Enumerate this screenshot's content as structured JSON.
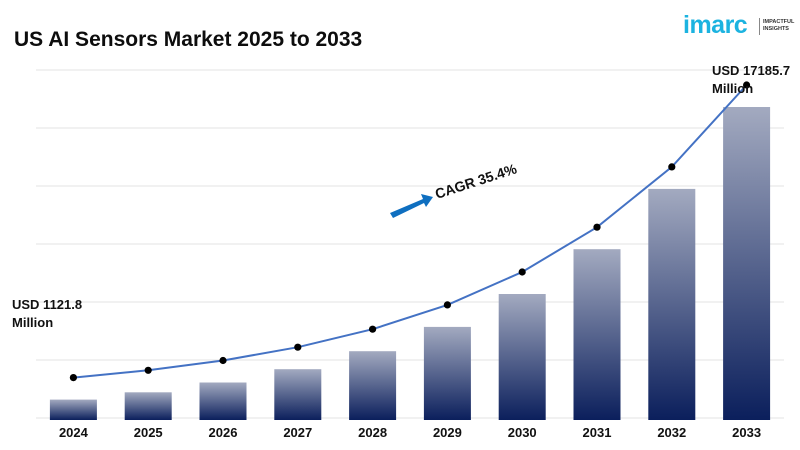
{
  "chart_data": {
    "type": "bar",
    "title": "US AI Sensors Market 2025 to 2033",
    "categories": [
      "2024",
      "2025",
      "2026",
      "2027",
      "2028",
      "2029",
      "2030",
      "2031",
      "2032",
      "2033"
    ],
    "values": [
      1121.8,
      1520,
      2060,
      2790,
      3780,
      5110,
      6920,
      9380,
      12690,
      17185.7
    ],
    "trend_line": true,
    "cagr_label": "CAGR 35.4%",
    "annotations": {
      "start": {
        "line1": "USD 1121.8",
        "line2": "Million"
      },
      "end": {
        "line1": "USD 17185.7",
        "line2": "Million"
      }
    },
    "grid": true,
    "colors": {
      "bar_top": "#a3aac0",
      "bar_bottom": "#0b1f5c",
      "line": "#4472c4",
      "arrow": "#0f6fc0",
      "grid": "#e3e3e3"
    }
  },
  "brand": {
    "logo_text": "imarc",
    "tagline_1": "IMPACTFUL",
    "tagline_2": "INSIGHTS",
    "logo_color": "#1cb3e0"
  }
}
